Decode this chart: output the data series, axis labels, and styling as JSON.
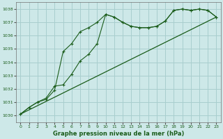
{
  "xlabel": "Graphe pression niveau de la mer (hPa)",
  "xlim": [
    -0.5,
    23.5
  ],
  "ylim": [
    1029.5,
    1038.5
  ],
  "yticks": [
    1030,
    1031,
    1032,
    1033,
    1034,
    1035,
    1036,
    1037,
    1038
  ],
  "xticks": [
    0,
    1,
    2,
    3,
    4,
    5,
    6,
    7,
    8,
    9,
    10,
    11,
    12,
    13,
    14,
    15,
    16,
    17,
    18,
    19,
    20,
    21,
    22,
    23
  ],
  "bg_color": "#cde8e8",
  "grid_color": "#a8cece",
  "line_color": "#1a5c1a",
  "series1_y": [
    1030.1,
    1030.6,
    1031.0,
    1031.2,
    1031.9,
    1034.8,
    1035.4,
    1036.3,
    1036.6,
    1037.0,
    1037.6,
    1037.4,
    1037.0,
    1036.7,
    1036.6,
    1036.6,
    1036.7,
    1037.1,
    1037.9,
    1038.0,
    1037.9,
    1038.0,
    1037.9,
    1037.4
  ],
  "series2_y": [
    1030.1,
    1030.6,
    1031.0,
    1031.3,
    1032.2,
    1032.3,
    1033.1,
    1034.1,
    1034.6,
    1035.4,
    1037.6,
    1037.4,
    1037.0,
    1036.7,
    1036.6,
    1036.6,
    1036.7,
    1037.1,
    1037.9,
    1038.0,
    1037.9,
    1038.0,
    1037.9,
    1037.4
  ],
  "trend_x": [
    0,
    23
  ],
  "trend_y": [
    1030.1,
    1037.4
  ],
  "figsize": [
    3.2,
    2.0
  ],
  "dpi": 100
}
